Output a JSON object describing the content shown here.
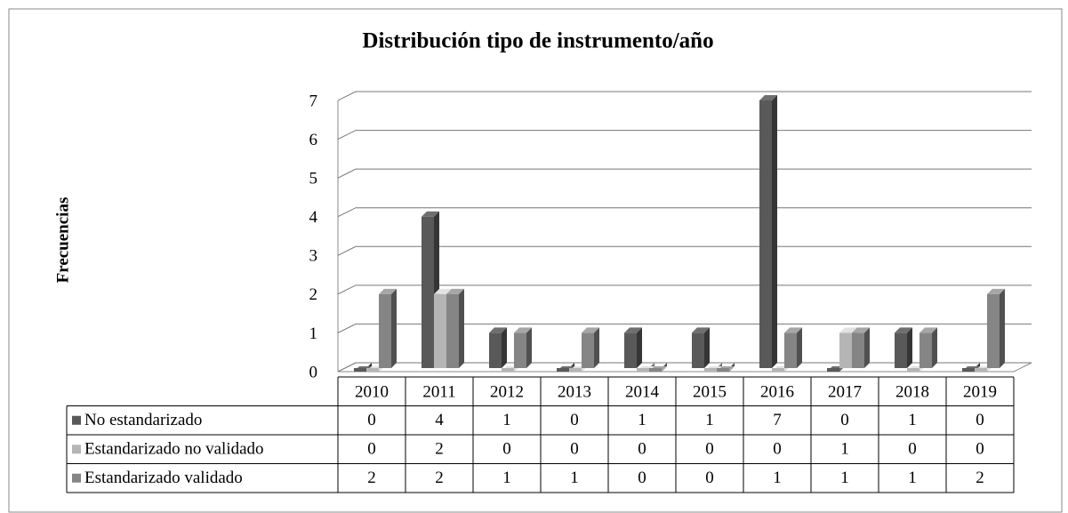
{
  "chart_data": {
    "type": "bar3d",
    "title": "Distribución tipo de instrumento/año",
    "y_label": "Frecuencias",
    "categories": [
      "2010",
      "2011",
      "2012",
      "2013",
      "2014",
      "2015",
      "2016",
      "2017",
      "2018",
      "2019"
    ],
    "series": [
      {
        "name": "No estandarizado",
        "color": "#595959",
        "values": [
          0,
          4,
          1,
          0,
          1,
          1,
          7,
          0,
          1,
          0
        ]
      },
      {
        "name": "Estandarizado no validado",
        "color": "#b5b5b5",
        "values": [
          0,
          2,
          0,
          0,
          0,
          0,
          0,
          1,
          0,
          0
        ]
      },
      {
        "name": "Estandarizado validado",
        "color": "#858585",
        "values": [
          2,
          2,
          1,
          1,
          0,
          0,
          1,
          1,
          1,
          2
        ]
      }
    ],
    "ylim": [
      0,
      7
    ],
    "yticks": [
      0,
      1,
      2,
      3,
      4,
      5,
      6,
      7
    ],
    "grid": true,
    "data_table": true
  }
}
